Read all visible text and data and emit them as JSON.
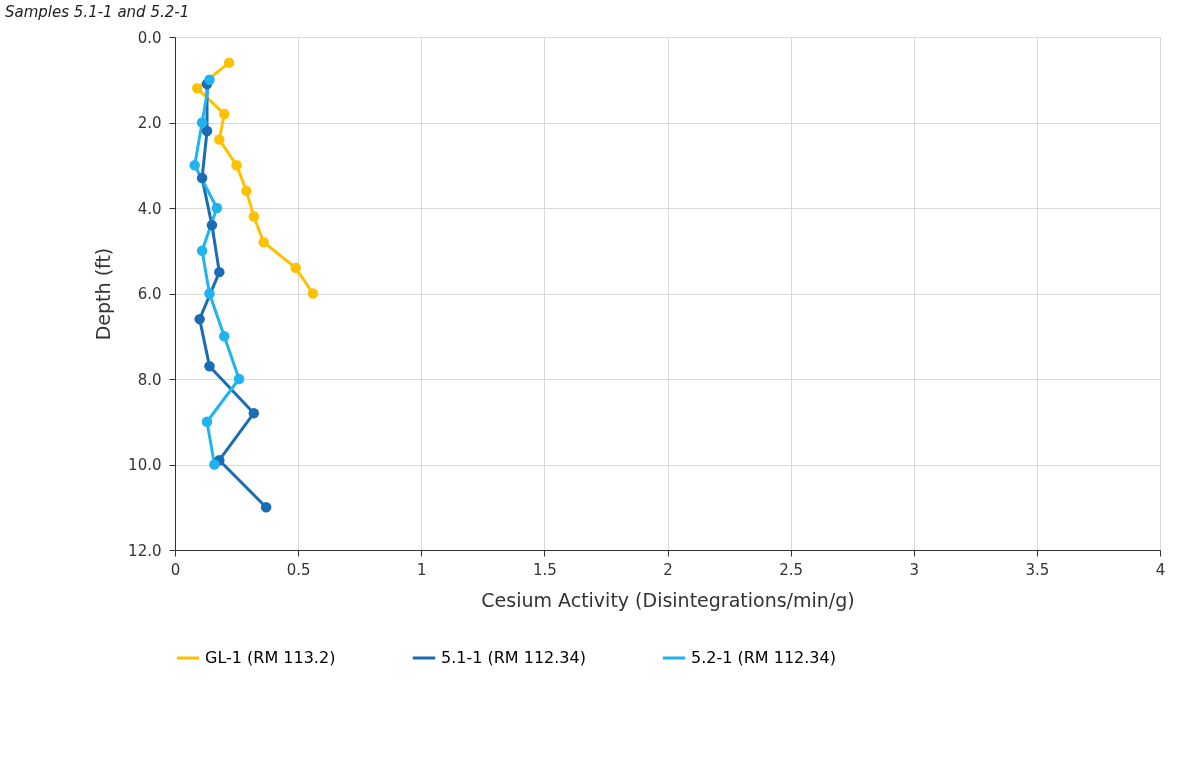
{
  "chart_data": {
    "type": "line",
    "annotations": [
      "Samples 5.1-1 and 5.2-1"
    ],
    "xlabel": "Cesium Activity (Disintegrations/min/g)",
    "ylabel": "Depth (ft)",
    "xlim": [
      0,
      4
    ],
    "xticks": [
      0,
      0.5,
      1,
      1.5,
      2,
      2.5,
      3,
      3.5,
      4
    ],
    "ylim": [
      12,
      0
    ],
    "yticks": [
      {
        "value": 0,
        "label": "0.0"
      },
      {
        "value": 2,
        "label": "2.0"
      },
      {
        "value": 4,
        "label": "4.0"
      },
      {
        "value": 6,
        "label": "6.0"
      },
      {
        "value": 8,
        "label": "8.0"
      },
      {
        "value": 10,
        "label": "10.0"
      },
      {
        "value": 12,
        "label": "12.0"
      }
    ],
    "grid": true,
    "legend": "bottom",
    "marker": "circle",
    "line_style": "solid",
    "series": [
      {
        "name": "GL-1 (RM 113.2)",
        "color": "#ffc000",
        "x": [
          0.22,
          0.09,
          0.2,
          0.18,
          0.25,
          0.29,
          0.32,
          0.36,
          0.49,
          0.56
        ],
        "values": [
          0.6,
          1.2,
          1.8,
          2.4,
          3.0,
          3.6,
          4.2,
          4.8,
          5.4,
          6.0
        ]
      },
      {
        "name": "5.1-1 (RM 112.34)",
        "color": "#1a6db5",
        "x": [
          0.13,
          0.13,
          0.11,
          0.15,
          0.18,
          0.1,
          0.14,
          0.32,
          0.18,
          0.37
        ],
        "values": [
          1.1,
          2.2,
          3.3,
          4.4,
          5.5,
          6.6,
          7.7,
          8.8,
          9.9,
          11.0
        ]
      },
      {
        "name": "5.2-1 (RM 112.34)",
        "color": "#1fb4ee",
        "x": [
          0.14,
          0.11,
          0.08,
          0.17,
          0.11,
          0.14,
          0.2,
          0.26,
          0.13,
          0.16
        ],
        "values": [
          1.0,
          2.0,
          3.0,
          4.0,
          5.0,
          6.0,
          7.0,
          8.0,
          9.0,
          10.0
        ]
      }
    ]
  }
}
